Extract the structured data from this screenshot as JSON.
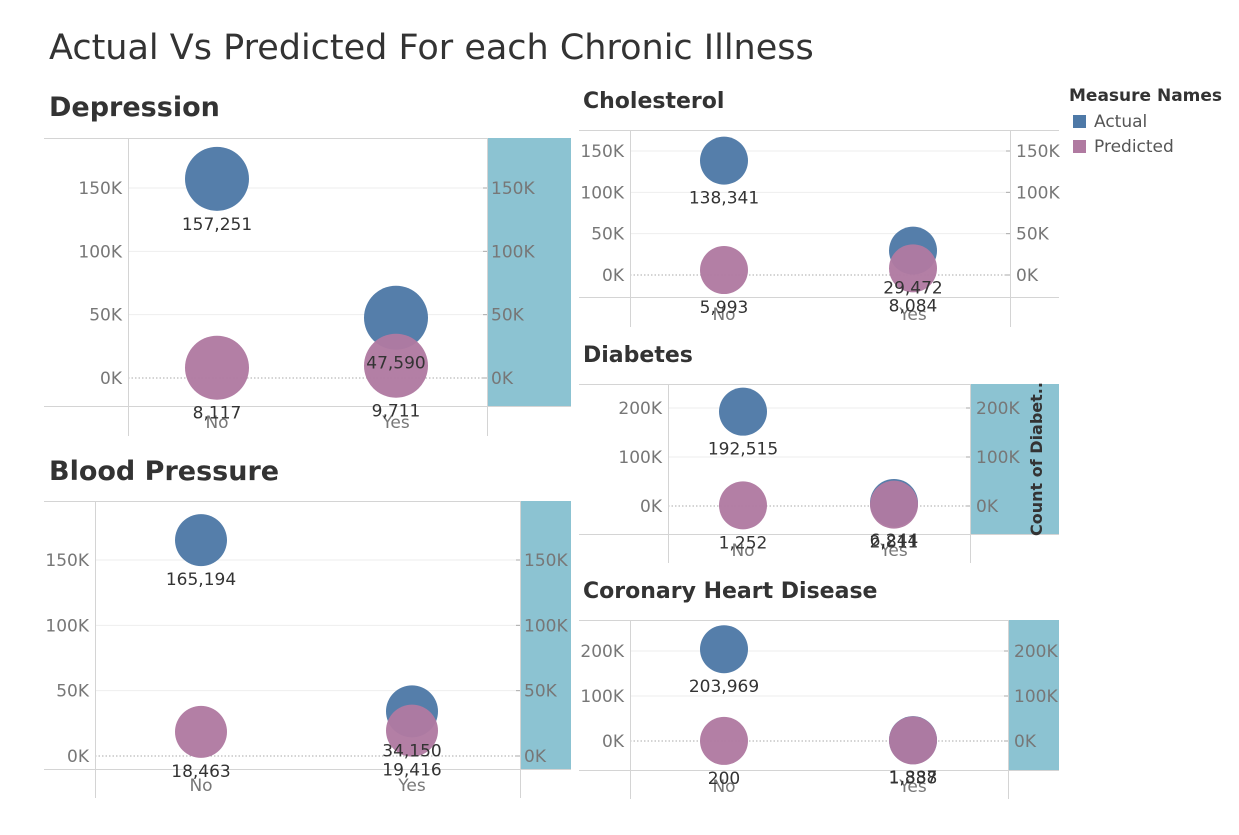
{
  "page_title": "Actual Vs Predicted For each Chronic Illness",
  "legend": {
    "title": "Measure Names",
    "items": [
      {
        "label": "Actual",
        "color": "#4e79a7"
      },
      {
        "label": "Predicted",
        "color": "#b07aa1"
      }
    ]
  },
  "chart_data": [
    {
      "type": "scatter",
      "title": "Depression",
      "categories": [
        "No",
        "Yes"
      ],
      "series": [
        {
          "name": "Actual",
          "values": [
            157251,
            47590
          ],
          "labels": [
            "157,251",
            "47,590"
          ]
        },
        {
          "name": "Predicted",
          "values": [
            8117,
            9711
          ],
          "labels": [
            "8,117",
            "9,711"
          ]
        }
      ],
      "yticks": [
        0,
        50000,
        100000,
        150000
      ],
      "ytick_labels": [
        "0K",
        "50K",
        "100K",
        "150K"
      ],
      "right_axis_title": ""
    },
    {
      "type": "scatter",
      "title": "Cholesterol",
      "categories": [
        "No",
        "Yes"
      ],
      "series": [
        {
          "name": "Actual",
          "values": [
            138341,
            29472
          ],
          "labels": [
            "138,341",
            "29,472"
          ]
        },
        {
          "name": "Predicted",
          "values": [
            5993,
            8084
          ],
          "labels": [
            "5,993",
            "8,084"
          ]
        }
      ],
      "yticks": [
        0,
        50000,
        100000,
        150000
      ],
      "ytick_labels": [
        "0K",
        "50K",
        "100K",
        "150K"
      ],
      "right_axis_title": ""
    },
    {
      "type": "scatter",
      "title": "Diabetes",
      "categories": [
        "No",
        "Yes"
      ],
      "series": [
        {
          "name": "Actual",
          "values": [
            192515,
            6244
          ],
          "labels": [
            "192,515",
            "6,244"
          ]
        },
        {
          "name": "Predicted",
          "values": [
            1252,
            2811
          ],
          "labels": [
            "1,252",
            "2,811"
          ]
        }
      ],
      "yticks": [
        0,
        100000,
        200000
      ],
      "ytick_labels": [
        "0K",
        "100K",
        "200K"
      ],
      "right_axis_title": "Count of Diabet.."
    },
    {
      "type": "scatter",
      "title": "Blood Pressure",
      "categories": [
        "No",
        "Yes"
      ],
      "series": [
        {
          "name": "Actual",
          "values": [
            165194,
            34150
          ],
          "labels": [
            "165,194",
            "34,150"
          ]
        },
        {
          "name": "Predicted",
          "values": [
            18463,
            19416
          ],
          "labels": [
            "18,463",
            "19,416"
          ]
        }
      ],
      "yticks": [
        0,
        50000,
        100000,
        150000
      ],
      "ytick_labels": [
        "0K",
        "50K",
        "100K",
        "150K"
      ],
      "right_axis_title": ""
    },
    {
      "type": "scatter",
      "title": "Coronary Heart Disease",
      "categories": [
        "No",
        "Yes"
      ],
      "series": [
        {
          "name": "Actual",
          "values": [
            203969,
            1887
          ],
          "labels": [
            "203,969",
            "1,887"
          ]
        },
        {
          "name": "Predicted",
          "values": [
            200,
            1338
          ],
          "labels": [
            "200",
            "1,338"
          ]
        }
      ],
      "yticks": [
        0,
        100000,
        200000
      ],
      "ytick_labels": [
        "0K",
        "100K",
        "200K"
      ],
      "right_axis_title": ""
    }
  ]
}
